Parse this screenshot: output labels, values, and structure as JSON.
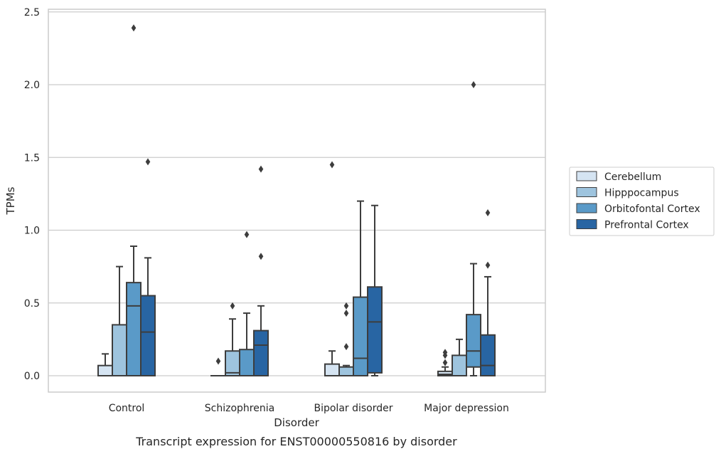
{
  "caption": "Transcript expression for ENST00000550816 by disorder",
  "chart_data": {
    "type": "box",
    "title": "",
    "xlabel": "Disorder",
    "ylabel": "TPMs",
    "ylim": [
      -0.11,
      2.52
    ],
    "yticks": [
      0.0,
      0.5,
      1.0,
      1.5,
      2.0,
      2.5
    ],
    "ytick_labels": [
      "0.0",
      "0.5",
      "1.0",
      "1.5",
      "2.0",
      "2.5"
    ],
    "grid": "horizontal",
    "legend_position": "right",
    "categories": [
      "Control",
      "Schizophrenia",
      "Bipolar disorder",
      "Major depression"
    ],
    "series": [
      {
        "name": "Cerebellum",
        "color": "#d5e4f2",
        "boxes": [
          {
            "q1": 0.0,
            "median": 0.0,
            "q3": 0.07,
            "whisker_low": 0.0,
            "whisker_high": 0.15,
            "outliers": []
          },
          {
            "q1": 0.0,
            "median": 0.0,
            "q3": 0.0,
            "whisker_low": 0.0,
            "whisker_high": 0.0,
            "outliers": [
              0.1
            ]
          },
          {
            "q1": 0.0,
            "median": 0.0,
            "q3": 0.08,
            "whisker_low": 0.0,
            "whisker_high": 0.17,
            "outliers": [
              1.45
            ]
          },
          {
            "q1": 0.0,
            "median": 0.01,
            "q3": 0.03,
            "whisker_low": 0.0,
            "whisker_high": 0.06,
            "outliers": [
              0.09,
              0.14,
              0.16
            ]
          }
        ]
      },
      {
        "name": "Hipppocampus",
        "color": "#9ec4de",
        "boxes": [
          {
            "q1": 0.0,
            "median": 0.0,
            "q3": 0.35,
            "whisker_low": 0.0,
            "whisker_high": 0.75,
            "outliers": []
          },
          {
            "q1": 0.0,
            "median": 0.02,
            "q3": 0.17,
            "whisker_low": 0.0,
            "whisker_high": 0.39,
            "outliers": [
              0.48
            ]
          },
          {
            "q1": 0.0,
            "median": 0.0,
            "q3": 0.06,
            "whisker_low": 0.0,
            "whisker_high": 0.07,
            "outliers": [
              0.2,
              0.43,
              0.48
            ]
          },
          {
            "q1": 0.0,
            "median": 0.0,
            "q3": 0.14,
            "whisker_low": 0.0,
            "whisker_high": 0.25,
            "outliers": []
          }
        ]
      },
      {
        "name": "Orbitofontal Cortex",
        "color": "#5a9ac8",
        "boxes": [
          {
            "q1": 0.0,
            "median": 0.48,
            "q3": 0.64,
            "whisker_low": 0.0,
            "whisker_high": 0.89,
            "outliers": [
              2.39
            ]
          },
          {
            "q1": 0.0,
            "median": 0.0,
            "q3": 0.18,
            "whisker_low": 0.0,
            "whisker_high": 0.43,
            "outliers": [
              0.97
            ]
          },
          {
            "q1": 0.0,
            "median": 0.12,
            "q3": 0.54,
            "whisker_low": 0.0,
            "whisker_high": 1.2,
            "outliers": []
          },
          {
            "q1": 0.06,
            "median": 0.17,
            "q3": 0.42,
            "whisker_low": 0.0,
            "whisker_high": 0.77,
            "outliers": [
              2.0
            ]
          }
        ]
      },
      {
        "name": "Prefrontal Cortex",
        "color": "#2865a3",
        "boxes": [
          {
            "q1": 0.0,
            "median": 0.3,
            "q3": 0.55,
            "whisker_low": 0.0,
            "whisker_high": 0.81,
            "outliers": [
              1.47
            ]
          },
          {
            "q1": 0.0,
            "median": 0.21,
            "q3": 0.31,
            "whisker_low": 0.0,
            "whisker_high": 0.48,
            "outliers": [
              0.82,
              1.42
            ]
          },
          {
            "q1": 0.02,
            "median": 0.37,
            "q3": 0.61,
            "whisker_low": 0.0,
            "whisker_high": 1.17,
            "outliers": []
          },
          {
            "q1": 0.0,
            "median": 0.07,
            "q3": 0.28,
            "whisker_low": 0.0,
            "whisker_high": 0.68,
            "outliers": [
              0.76,
              1.12
            ]
          }
        ]
      }
    ]
  }
}
